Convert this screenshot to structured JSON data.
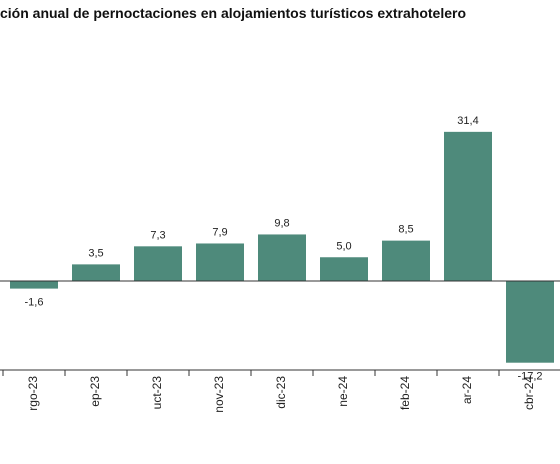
{
  "chart_data": {
    "type": "bar",
    "title": "ción anual de pernoctaciones en alojamientos turísticos extrahotelero",
    "categories": [
      "rgo-23",
      "ep-23",
      "uct-23",
      "nov-23",
      "dic-23",
      "ne-24",
      "feb-24",
      "ar-24",
      "cbr-24"
    ],
    "values": [
      -1.6,
      3.5,
      7.3,
      7.9,
      9.8,
      5.0,
      8.5,
      31.4,
      -17.2
    ],
    "value_labels": [
      "-1,6",
      "3,5",
      "7,3",
      "7,9",
      "9,8",
      "5,0",
      "8,5",
      "31,4",
      "-17,2"
    ],
    "bar_color": "#4e8a7b",
    "grid": false,
    "legend": "none"
  }
}
